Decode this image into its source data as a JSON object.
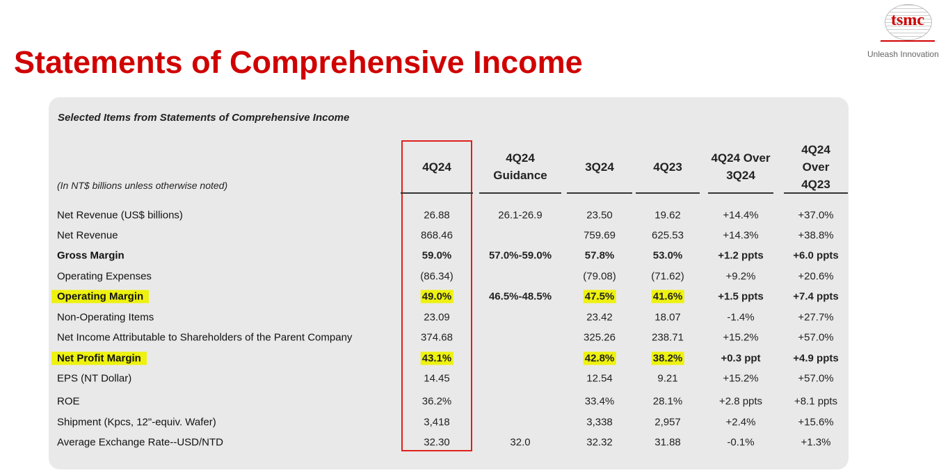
{
  "header": {
    "title": "Statements of Comprehensive Income",
    "logo": "tsmc",
    "tagline": "Unleash Innovation"
  },
  "table": {
    "caption": "Selected Items from Statements of Comprehensive Income",
    "note": "(In NT$ billions unless otherwise noted)",
    "columns": [
      "4Q24",
      "4Q24 Guidance",
      "3Q24",
      "4Q23",
      "4Q24 Over 3Q24",
      "4Q24 Over 4Q23"
    ],
    "rows": [
      {
        "label": "Net Revenue (US$ billions)",
        "cells": [
          "26.88",
          "26.1-26.9",
          "23.50",
          "19.62",
          "+14.4%",
          "+37.0%"
        ],
        "bold": false,
        "highlight": []
      },
      {
        "label": "Net Revenue",
        "cells": [
          "868.46",
          null,
          "759.69",
          "625.53",
          "+14.3%",
          "+38.8%"
        ],
        "bold": false,
        "highlight": []
      },
      {
        "label": "Gross Margin",
        "cells": [
          "59.0%",
          "57.0%-59.0%",
          "57.8%",
          "53.0%",
          "+1.2 ppts",
          "+6.0 ppts"
        ],
        "bold": true,
        "highlight": []
      },
      {
        "label": "Operating Expenses",
        "cells": [
          "(86.34)",
          null,
          "(79.08)",
          "(71.62)",
          "+9.2%",
          "+20.6%"
        ],
        "bold": false,
        "highlight": []
      },
      {
        "label": "Operating Margin",
        "cells": [
          "49.0%",
          "46.5%-48.5%",
          "47.5%",
          "41.6%",
          "+1.5 ppts",
          "+7.4 ppts"
        ],
        "bold": true,
        "highlight": [
          "label",
          0,
          2,
          3
        ]
      },
      {
        "label": "Non-Operating Items",
        "cells": [
          "23.09",
          null,
          "23.42",
          "18.07",
          "-1.4%",
          "+27.7%"
        ],
        "bold": false,
        "highlight": []
      },
      {
        "label": "Net Income Attributable to Shareholders of the Parent Company",
        "cells": [
          "374.68",
          null,
          "325.26",
          "238.71",
          "+15.2%",
          "+57.0%"
        ],
        "bold": false,
        "highlight": []
      },
      {
        "label": "Net Profit Margin",
        "cells": [
          "43.1%",
          null,
          "42.8%",
          "38.2%",
          "+0.3 ppt",
          "+4.9 ppts"
        ],
        "bold": true,
        "highlight": [
          "label",
          0,
          2,
          3
        ]
      },
      {
        "label": "EPS (NT Dollar)",
        "cells": [
          "14.45",
          null,
          "12.54",
          "9.21",
          "+15.2%",
          "+57.0%"
        ],
        "bold": false,
        "highlight": []
      },
      {
        "label": "ROE",
        "cells": [
          "36.2%",
          null,
          "33.4%",
          "28.1%",
          "+2.8 ppts",
          "+8.1 ppts"
        ],
        "bold": false,
        "highlight": []
      },
      {
        "label": "Shipment (Kpcs, 12\"-equiv. Wafer)",
        "cells": [
          "3,418",
          null,
          "3,338",
          "2,957",
          "+2.4%",
          "+15.6%"
        ],
        "bold": false,
        "highlight": []
      },
      {
        "label": "Average Exchange Rate--USD/NTD",
        "cells": [
          "32.30",
          "32.0",
          "32.32",
          "31.88",
          "-0.1%",
          "+1.3%"
        ],
        "bold": false,
        "highlight": []
      }
    ]
  }
}
